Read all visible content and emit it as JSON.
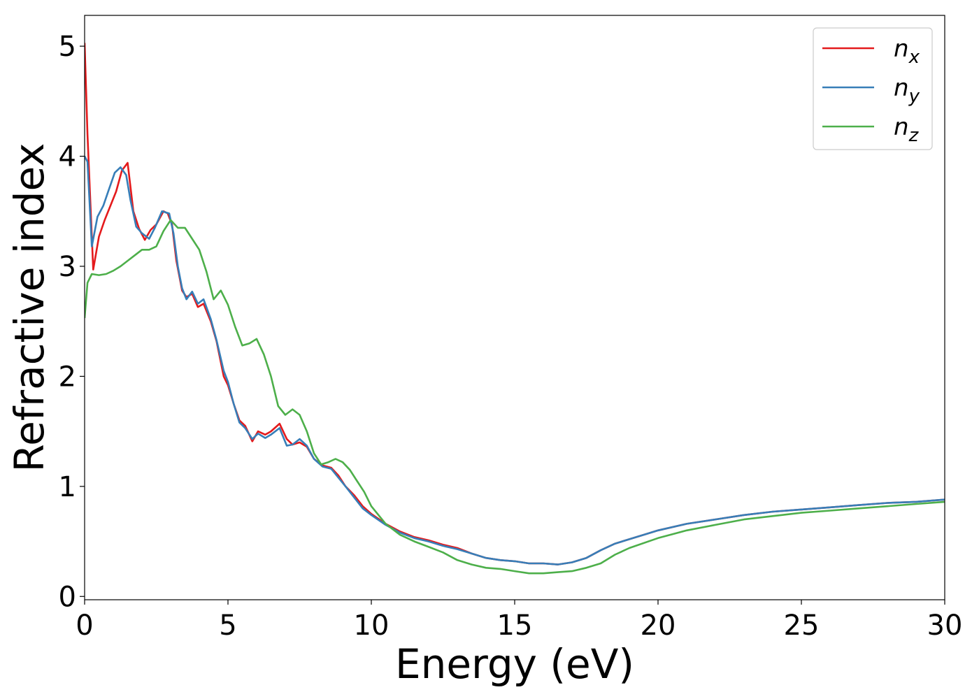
{
  "chart_data": {
    "type": "line",
    "title": "",
    "xlabel": "Energy (eV)",
    "ylabel": "Refractive index",
    "xlim": [
      0,
      30
    ],
    "ylim": [
      -0.03,
      5.28
    ],
    "xticks": [
      0,
      5,
      10,
      15,
      20,
      25,
      30
    ],
    "yticks": [
      0,
      1,
      2,
      3,
      4,
      5
    ],
    "grid": false,
    "legend_position": "top-right",
    "series": [
      {
        "name": "n",
        "subscript": "x",
        "color": "#e41a1c",
        "x": [
          0,
          0.1,
          0.3,
          0.5,
          0.7,
          0.9,
          1.1,
          1.3,
          1.5,
          1.7,
          1.9,
          2.1,
          2.3,
          2.5,
          2.75,
          2.9,
          3.05,
          3.2,
          3.4,
          3.55,
          3.75,
          3.95,
          4.15,
          4.4,
          4.6,
          4.85,
          5.0,
          5.2,
          5.4,
          5.6,
          5.85,
          6.05,
          6.3,
          6.5,
          6.8,
          7.05,
          7.25,
          7.5,
          7.75,
          8.0,
          8.3,
          8.6,
          8.85,
          9.1,
          9.4,
          9.7,
          10.0,
          10.5,
          11.0,
          11.5,
          12.0,
          12.5,
          13.0,
          13.5,
          14.0,
          14.5,
          15.0,
          15.5,
          16.0,
          16.5,
          17.0,
          17.5,
          18.0,
          18.5,
          19.0,
          20.0,
          21.0,
          22.0,
          23.0,
          24.0,
          25.0,
          26.0,
          27.0,
          28.0,
          29.0,
          30.0
        ],
        "values": [
          5.03,
          4.2,
          2.97,
          3.27,
          3.42,
          3.55,
          3.68,
          3.87,
          3.94,
          3.5,
          3.34,
          3.24,
          3.33,
          3.38,
          3.5,
          3.48,
          3.38,
          3.05,
          2.78,
          2.72,
          2.75,
          2.63,
          2.66,
          2.5,
          2.32,
          2.0,
          1.92,
          1.75,
          1.6,
          1.55,
          1.41,
          1.5,
          1.47,
          1.5,
          1.57,
          1.43,
          1.38,
          1.4,
          1.36,
          1.25,
          1.19,
          1.17,
          1.1,
          1.0,
          0.92,
          0.82,
          0.75,
          0.66,
          0.59,
          0.54,
          0.51,
          0.47,
          0.44,
          0.39,
          0.35,
          0.33,
          0.32,
          0.3,
          0.3,
          0.29,
          0.31,
          0.35,
          0.42,
          0.48,
          0.52,
          0.6,
          0.66,
          0.7,
          0.74,
          0.77,
          0.79,
          0.81,
          0.83,
          0.85,
          0.86,
          0.88
        ]
      },
      {
        "name": "n",
        "subscript": "y",
        "color": "#377eb8",
        "x": [
          0,
          0.1,
          0.25,
          0.45,
          0.65,
          0.85,
          1.05,
          1.25,
          1.45,
          1.6,
          1.8,
          2.0,
          2.25,
          2.45,
          2.7,
          2.95,
          3.1,
          3.25,
          3.4,
          3.55,
          3.75,
          3.95,
          4.15,
          4.4,
          4.6,
          4.85,
          5.0,
          5.2,
          5.4,
          5.6,
          5.85,
          6.05,
          6.3,
          6.5,
          6.8,
          7.05,
          7.25,
          7.5,
          7.75,
          8.0,
          8.3,
          8.6,
          8.85,
          9.1,
          9.4,
          9.7,
          10.0,
          10.5,
          11.0,
          11.5,
          12.0,
          12.5,
          13.0,
          13.5,
          14.0,
          14.5,
          15.0,
          15.5,
          16.0,
          16.5,
          17.0,
          17.5,
          18.0,
          18.5,
          19.0,
          20.0,
          21.0,
          22.0,
          23.0,
          24.0,
          25.0,
          26.0,
          27.0,
          28.0,
          29.0,
          30.0
        ],
        "values": [
          4.0,
          3.95,
          3.18,
          3.45,
          3.55,
          3.7,
          3.85,
          3.9,
          3.83,
          3.6,
          3.36,
          3.3,
          3.25,
          3.35,
          3.5,
          3.48,
          3.3,
          3.0,
          2.8,
          2.7,
          2.77,
          2.66,
          2.7,
          2.52,
          2.33,
          2.05,
          1.95,
          1.75,
          1.58,
          1.53,
          1.43,
          1.48,
          1.44,
          1.47,
          1.53,
          1.37,
          1.38,
          1.43,
          1.37,
          1.25,
          1.18,
          1.16,
          1.08,
          1.0,
          0.9,
          0.8,
          0.74,
          0.65,
          0.58,
          0.53,
          0.5,
          0.46,
          0.43,
          0.39,
          0.35,
          0.33,
          0.32,
          0.3,
          0.3,
          0.29,
          0.31,
          0.35,
          0.42,
          0.48,
          0.52,
          0.6,
          0.66,
          0.7,
          0.74,
          0.77,
          0.79,
          0.81,
          0.83,
          0.85,
          0.86,
          0.88
        ]
      },
      {
        "name": "n",
        "subscript": "z",
        "color": "#4daf4a",
        "x": [
          0,
          0.1,
          0.25,
          0.5,
          0.75,
          1.0,
          1.25,
          1.5,
          1.75,
          2.0,
          2.25,
          2.5,
          2.75,
          3.0,
          3.25,
          3.5,
          3.75,
          4.0,
          4.25,
          4.5,
          4.75,
          5.0,
          5.25,
          5.5,
          5.75,
          6.0,
          6.25,
          6.5,
          6.75,
          7.0,
          7.25,
          7.5,
          7.75,
          8.0,
          8.25,
          8.5,
          8.75,
          9.0,
          9.25,
          9.5,
          9.75,
          10.0,
          10.5,
          11.0,
          11.5,
          12.0,
          12.5,
          13.0,
          13.5,
          14.0,
          14.5,
          15.0,
          15.5,
          16.0,
          16.5,
          17.0,
          17.5,
          18.0,
          18.5,
          19.0,
          20.0,
          21.0,
          22.0,
          23.0,
          24.0,
          25.0,
          26.0,
          27.0,
          28.0,
          29.0,
          30.0
        ],
        "values": [
          2.53,
          2.85,
          2.93,
          2.92,
          2.93,
          2.96,
          3.0,
          3.05,
          3.1,
          3.15,
          3.15,
          3.18,
          3.32,
          3.42,
          3.35,
          3.35,
          3.25,
          3.15,
          2.95,
          2.7,
          2.78,
          2.65,
          2.45,
          2.28,
          2.3,
          2.34,
          2.2,
          2.0,
          1.73,
          1.65,
          1.7,
          1.65,
          1.5,
          1.3,
          1.2,
          1.22,
          1.25,
          1.22,
          1.15,
          1.05,
          0.95,
          0.82,
          0.66,
          0.56,
          0.5,
          0.45,
          0.4,
          0.33,
          0.29,
          0.26,
          0.25,
          0.23,
          0.21,
          0.21,
          0.22,
          0.23,
          0.26,
          0.3,
          0.38,
          0.44,
          0.53,
          0.6,
          0.65,
          0.7,
          0.73,
          0.76,
          0.78,
          0.8,
          0.82,
          0.84,
          0.86
        ]
      }
    ]
  }
}
